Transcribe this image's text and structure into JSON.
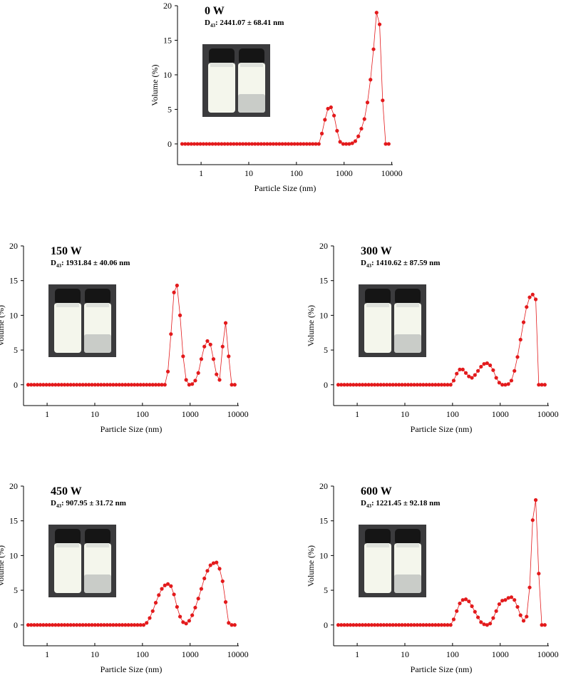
{
  "chart_data": [
    {
      "type": "line",
      "title": "0 W",
      "annotation": {
        "symbol": "D",
        "subscript": "43",
        "text": ": 2441.07 ± 68.41 nm"
      },
      "x_label": "Particle Size (nm)",
      "y_label": "Volume (%)",
      "log_x": true,
      "color": "#e31a1c",
      "x": [
        0.4,
        0.4632,
        0.5365,
        0.6213,
        0.7195,
        0.8332,
        0.9649,
        1.117,
        1.294,
        1.499,
        1.736,
        2.01,
        2.328,
        2.696,
        3.122,
        3.615,
        4.187,
        4.849,
        5.615,
        6.503,
        7.531,
        8.721,
        10.1,
        11.7,
        13.54,
        15.69,
        18.17,
        21.04,
        24.36,
        28.21,
        32.67,
        37.84,
        43.82,
        50.75,
        58.77,
        68.06,
        78.82,
        91.28,
        105.7,
        122.4,
        141.8,
        164.2,
        190.1,
        220.2,
        255,
        295.3,
        342,
        396.1,
        458.7,
        531.2,
        615.1,
        712.4,
        825,
        955.4,
        1106,
        1281,
        1484,
        1718,
        1990,
        2305,
        2669,
        3091,
        3580,
        4145,
        4801,
        5560,
        6439,
        7456,
        8635
      ],
      "values": [
        0,
        0,
        0,
        0,
        0,
        0,
        0,
        0,
        0,
        0,
        0,
        0,
        0,
        0,
        0,
        0,
        0,
        0,
        0,
        0,
        0,
        0,
        0,
        0,
        0,
        0,
        0,
        0,
        0,
        0,
        0,
        0,
        0,
        0,
        0,
        0,
        0,
        0,
        0,
        0,
        0,
        0,
        0,
        0,
        0,
        0,
        1.5,
        3.5,
        5.1,
        5.3,
        4.1,
        1.9,
        0.3,
        0,
        0,
        0,
        0.1,
        0.4,
        1.1,
        2.2,
        3.6,
        6.0,
        9.3,
        13.7,
        19.0,
        17.3,
        6.3,
        0,
        0
      ],
      "xlim": [
        0.32,
        10500
      ],
      "ylim": [
        -3,
        20
      ],
      "xticks": [
        1,
        10,
        100,
        1000,
        10000
      ],
      "yticks": [
        0,
        5,
        10,
        15,
        20
      ]
    },
    {
      "type": "line",
      "title": "150 W",
      "annotation": {
        "symbol": "D",
        "subscript": "43",
        "text": ": 1931.84 ± 40.06 nm"
      },
      "x_label": "Particle Size (nm)",
      "y_label": "Volume (%)",
      "log_x": true,
      "color": "#e31a1c",
      "x": [
        0.4,
        0.4632,
        0.5365,
        0.6213,
        0.7195,
        0.8332,
        0.9649,
        1.117,
        1.294,
        1.499,
        1.736,
        2.01,
        2.328,
        2.696,
        3.122,
        3.615,
        4.187,
        4.849,
        5.615,
        6.503,
        7.531,
        8.721,
        10.1,
        11.7,
        13.54,
        15.69,
        18.17,
        21.04,
        24.36,
        28.21,
        32.67,
        37.84,
        43.82,
        50.75,
        58.77,
        68.06,
        78.82,
        91.28,
        105.7,
        122.4,
        141.8,
        164.2,
        190.1,
        220.2,
        255,
        295.3,
        342,
        396.1,
        458.7,
        531.2,
        615.1,
        712.4,
        825,
        955.4,
        1106,
        1281,
        1484,
        1718,
        1990,
        2305,
        2669,
        3091,
        3580,
        4145,
        4801,
        5560,
        6439,
        7456,
        8635
      ],
      "values": [
        0,
        0,
        0,
        0,
        0,
        0,
        0,
        0,
        0,
        0,
        0,
        0,
        0,
        0,
        0,
        0,
        0,
        0,
        0,
        0,
        0,
        0,
        0,
        0,
        0,
        0,
        0,
        0,
        0,
        0,
        0,
        0,
        0,
        0,
        0,
        0,
        0,
        0,
        0,
        0,
        0,
        0,
        0,
        0,
        0,
        0,
        1.9,
        7.3,
        13.3,
        14.3,
        10.0,
        4.1,
        0.7,
        0,
        0.1,
        0.6,
        1.7,
        3.7,
        5.5,
        6.3,
        5.8,
        3.7,
        1.5,
        0.7,
        5.5,
        8.9,
        4.1,
        0,
        0
      ],
      "xlim": [
        0.32,
        10500
      ],
      "ylim": [
        -3,
        20
      ],
      "xticks": [
        1,
        10,
        100,
        1000,
        10000
      ],
      "yticks": [
        0,
        5,
        10,
        15,
        20
      ]
    },
    {
      "type": "line",
      "title": "300 W",
      "annotation": {
        "symbol": "D",
        "subscript": "43",
        "text": ": 1410.62 ± 87.59 nm"
      },
      "x_label": "Particle Size (nm)",
      "y_label": "Volume (%)",
      "log_x": true,
      "color": "#e31a1c",
      "x": [
        0.4,
        0.4632,
        0.5365,
        0.6213,
        0.7195,
        0.8332,
        0.9649,
        1.117,
        1.294,
        1.499,
        1.736,
        2.01,
        2.328,
        2.696,
        3.122,
        3.615,
        4.187,
        4.849,
        5.615,
        6.503,
        7.531,
        8.721,
        10.1,
        11.7,
        13.54,
        15.69,
        18.17,
        21.04,
        24.36,
        28.21,
        32.67,
        37.84,
        43.82,
        50.75,
        58.77,
        68.06,
        78.82,
        91.28,
        105.7,
        122.4,
        141.8,
        164.2,
        190.1,
        220.2,
        255,
        295.3,
        342,
        396.1,
        458.7,
        531.2,
        615.1,
        712.4,
        825,
        955.4,
        1106,
        1281,
        1484,
        1718,
        1990,
        2305,
        2669,
        3091,
        3580,
        4145,
        4801,
        5560,
        6439,
        7456,
        8635
      ],
      "values": [
        0,
        0,
        0,
        0,
        0,
        0,
        0,
        0,
        0,
        0,
        0,
        0,
        0,
        0,
        0,
        0,
        0,
        0,
        0,
        0,
        0,
        0,
        0,
        0,
        0,
        0,
        0,
        0,
        0,
        0,
        0,
        0,
        0,
        0,
        0,
        0,
        0,
        0,
        0.6,
        1.6,
        2.2,
        2.2,
        1.7,
        1.2,
        1.0,
        1.4,
        2.0,
        2.6,
        3.0,
        3.1,
        2.8,
        2.1,
        1.0,
        0.3,
        0,
        0,
        0.1,
        0.6,
        2.0,
        4.0,
        6.5,
        9.0,
        11.2,
        12.6,
        13.0,
        12.3,
        0,
        0,
        0
      ],
      "xlim": [
        0.32,
        10500
      ],
      "ylim": [
        -3,
        20
      ],
      "xticks": [
        1,
        10,
        100,
        1000,
        10000
      ],
      "yticks": [
        0,
        5,
        10,
        15,
        20
      ]
    },
    {
      "type": "line",
      "title": "450 W",
      "annotation": {
        "symbol": "D",
        "subscript": "43",
        "text": ": 907.95 ± 31.72 nm"
      },
      "x_label": "Particle Size (nm)",
      "y_label": "Volume (%)",
      "log_x": true,
      "color": "#e31a1c",
      "x": [
        0.4,
        0.4632,
        0.5365,
        0.6213,
        0.7195,
        0.8332,
        0.9649,
        1.117,
        1.294,
        1.499,
        1.736,
        2.01,
        2.328,
        2.696,
        3.122,
        3.615,
        4.187,
        4.849,
        5.615,
        6.503,
        7.531,
        8.721,
        10.1,
        11.7,
        13.54,
        15.69,
        18.17,
        21.04,
        24.36,
        28.21,
        32.67,
        37.84,
        43.82,
        50.75,
        58.77,
        68.06,
        78.82,
        91.28,
        105.7,
        122.4,
        141.8,
        164.2,
        190.1,
        220.2,
        255,
        295.3,
        342,
        396.1,
        458.7,
        531.2,
        615.1,
        712.4,
        825,
        955.4,
        1106,
        1281,
        1484,
        1718,
        1990,
        2305,
        2669,
        3091,
        3580,
        4145,
        4801,
        5560,
        6439,
        7456,
        8635
      ],
      "values": [
        0,
        0,
        0,
        0,
        0,
        0,
        0,
        0,
        0,
        0,
        0,
        0,
        0,
        0,
        0,
        0,
        0,
        0,
        0,
        0,
        0,
        0,
        0,
        0,
        0,
        0,
        0,
        0,
        0,
        0,
        0,
        0,
        0,
        0,
        0,
        0,
        0,
        0,
        0,
        0.3,
        1.0,
        2.0,
        3.2,
        4.3,
        5.2,
        5.7,
        5.9,
        5.6,
        4.4,
        2.6,
        1.2,
        0.4,
        0.2,
        0.6,
        1.4,
        2.5,
        3.8,
        5.2,
        6.7,
        7.8,
        8.6,
        8.9,
        9.0,
        8.1,
        6.3,
        3.3,
        0.3,
        0,
        0
      ],
      "xlim": [
        0.32,
        10500
      ],
      "ylim": [
        -3,
        20
      ],
      "xticks": [
        1,
        10,
        100,
        1000,
        10000
      ],
      "yticks": [
        0,
        5,
        10,
        15,
        20
      ]
    },
    {
      "type": "line",
      "title": "600 W",
      "annotation": {
        "symbol": "D",
        "subscript": "43",
        "text": ": 1221.45 ± 92.18 nm"
      },
      "x_label": "Particle Size (nm)",
      "y_label": "Volume (%)",
      "log_x": true,
      "color": "#e31a1c",
      "x": [
        0.4,
        0.4632,
        0.5365,
        0.6213,
        0.7195,
        0.8332,
        0.9649,
        1.117,
        1.294,
        1.499,
        1.736,
        2.01,
        2.328,
        2.696,
        3.122,
        3.615,
        4.187,
        4.849,
        5.615,
        6.503,
        7.531,
        8.721,
        10.1,
        11.7,
        13.54,
        15.69,
        18.17,
        21.04,
        24.36,
        28.21,
        32.67,
        37.84,
        43.82,
        50.75,
        58.77,
        68.06,
        78.82,
        91.28,
        105.7,
        122.4,
        141.8,
        164.2,
        190.1,
        220.2,
        255,
        295.3,
        342,
        396.1,
        458.7,
        531.2,
        615.1,
        712.4,
        825,
        955.4,
        1106,
        1281,
        1484,
        1718,
        1990,
        2305,
        2669,
        3091,
        3580,
        4145,
        4801,
        5560,
        6439,
        7456,
        8635
      ],
      "values": [
        0,
        0,
        0,
        0,
        0,
        0,
        0,
        0,
        0,
        0,
        0,
        0,
        0,
        0,
        0,
        0,
        0,
        0,
        0,
        0,
        0,
        0,
        0,
        0,
        0,
        0,
        0,
        0,
        0,
        0,
        0,
        0,
        0,
        0,
        0,
        0,
        0,
        0,
        0.8,
        2.0,
        3.1,
        3.6,
        3.7,
        3.4,
        2.7,
        1.9,
        1.1,
        0.4,
        0.1,
        0,
        0.2,
        1.0,
        2.0,
        3.0,
        3.5,
        3.6,
        3.9,
        4.0,
        3.6,
        2.6,
        1.4,
        0.6,
        1.2,
        5.4,
        15.1,
        18.0,
        7.4,
        0,
        0
      ],
      "xlim": [
        0.32,
        10500
      ],
      "ylim": [
        -3,
        20
      ],
      "xticks": [
        1,
        10,
        100,
        1000,
        10000
      ],
      "yticks": [
        0,
        5,
        10,
        15,
        20
      ]
    }
  ]
}
